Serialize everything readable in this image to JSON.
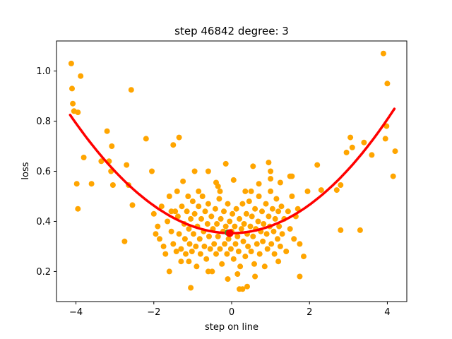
{
  "chart_data": {
    "type": "scatter",
    "title": "step 46842   degree: 3",
    "xlabel": "step on line",
    "ylabel": "loss",
    "xlim": [
      -4.5,
      4.5
    ],
    "ylim": [
      0.08,
      1.12
    ],
    "xticks": [
      -4,
      -2,
      0,
      2,
      4
    ],
    "yticks": [
      0.2,
      0.4,
      0.6,
      0.8,
      1.0
    ],
    "xtick_labels": [
      "−4",
      "−2",
      "0",
      "2",
      "4"
    ],
    "ytick_labels": [
      "0.2",
      "0.4",
      "0.6",
      "0.8",
      "1.0"
    ],
    "grid": false,
    "legend": "none",
    "colors": {
      "points": "#ffa500",
      "fit_curve": "#ff0000",
      "minimum_marker": "#ff0000",
      "current_marker": "#2ca02c"
    },
    "fit_polynomial": {
      "degree": 3,
      "coefficients_low_to_high": [
        0.353,
        0.0005,
        0.0279,
        9e-05
      ],
      "x_range": [
        -4.15,
        4.18
      ]
    },
    "minimum_point": {
      "x": -0.05,
      "y": 0.353
    },
    "current_point": {
      "x": -0.1,
      "y": 0.355
    },
    "points": [
      [
        -4.12,
        1.03
      ],
      [
        -4.1,
        0.93
      ],
      [
        -4.08,
        0.87
      ],
      [
        -4.05,
        0.84
      ],
      [
        -3.95,
        0.835
      ],
      [
        -3.88,
        0.98
      ],
      [
        -3.8,
        0.655
      ],
      [
        -3.98,
        0.55
      ],
      [
        -3.95,
        0.45
      ],
      [
        -3.6,
        0.55
      ],
      [
        -3.35,
        0.64
      ],
      [
        -3.2,
        0.76
      ],
      [
        -3.15,
        0.64
      ],
      [
        -3.1,
        0.6
      ],
      [
        -3.08,
        0.7
      ],
      [
        -3.05,
        0.545
      ],
      [
        -2.75,
        0.32
      ],
      [
        -2.7,
        0.625
      ],
      [
        -2.65,
        0.545
      ],
      [
        -2.58,
        0.925
      ],
      [
        -2.55,
        0.465
      ],
      [
        -2.2,
        0.73
      ],
      [
        -2.05,
        0.6
      ],
      [
        -1.95,
        0.35
      ],
      [
        -1.5,
        0.705
      ],
      [
        -1.35,
        0.735
      ],
      [
        -1.3,
        0.24
      ],
      [
        -1.1,
        0.24
      ],
      [
        -1.05,
        0.135
      ],
      [
        -0.95,
        0.6
      ],
      [
        -0.6,
        0.6
      ],
      [
        -0.4,
        0.555
      ],
      [
        -0.3,
        0.52
      ],
      [
        -0.15,
        0.63
      ],
      [
        0.05,
        0.565
      ],
      [
        0.2,
        0.13
      ],
      [
        0.28,
        0.13
      ],
      [
        0.5,
        0.52
      ],
      [
        0.55,
        0.62
      ],
      [
        0.95,
        0.635
      ],
      [
        1.0,
        0.6
      ],
      [
        1.25,
        0.555
      ],
      [
        1.5,
        0.58
      ],
      [
        1.55,
        0.58
      ],
      [
        1.7,
        0.45
      ],
      [
        1.75,
        0.31
      ],
      [
        1.75,
        0.18
      ],
      [
        1.85,
        0.26
      ],
      [
        1.95,
        0.52
      ],
      [
        2.2,
        0.625
      ],
      [
        2.3,
        0.525
      ],
      [
        2.7,
        0.525
      ],
      [
        2.8,
        0.365
      ],
      [
        2.8,
        0.545
      ],
      [
        2.95,
        0.675
      ],
      [
        3.05,
        0.735
      ],
      [
        3.1,
        0.695
      ],
      [
        3.3,
        0.365
      ],
      [
        3.4,
        0.715
      ],
      [
        3.6,
        0.665
      ],
      [
        3.9,
        1.07
      ],
      [
        3.95,
        0.73
      ],
      [
        3.98,
        0.78
      ],
      [
        4.0,
        0.95
      ],
      [
        4.15,
        0.58
      ],
      [
        4.2,
        0.68
      ],
      [
        -2.0,
        0.43
      ],
      [
        -1.9,
        0.38
      ],
      [
        -1.85,
        0.33
      ],
      [
        -1.8,
        0.46
      ],
      [
        -1.75,
        0.3
      ],
      [
        -1.7,
        0.27
      ],
      [
        -1.65,
        0.4
      ],
      [
        -1.6,
        0.5
      ],
      [
        -1.55,
        0.36
      ],
      [
        -1.5,
        0.31
      ],
      [
        -1.45,
        0.44
      ],
      [
        -1.42,
        0.28
      ],
      [
        -1.4,
        0.52
      ],
      [
        -1.38,
        0.42
      ],
      [
        -1.35,
        0.35
      ],
      [
        -1.3,
        0.29
      ],
      [
        -1.28,
        0.46
      ],
      [
        -1.25,
        0.56
      ],
      [
        -1.22,
        0.39
      ],
      [
        -1.2,
        0.33
      ],
      [
        -1.18,
        0.27
      ],
      [
        -1.15,
        0.44
      ],
      [
        -1.12,
        0.5
      ],
      [
        -1.1,
        0.37
      ],
      [
        -1.08,
        0.31
      ],
      [
        -1.05,
        0.41
      ],
      [
        -1.02,
        0.28
      ],
      [
        -1.0,
        0.48
      ],
      [
        -0.98,
        0.35
      ],
      [
        -0.95,
        0.43
      ],
      [
        -0.92,
        0.3
      ],
      [
        -0.9,
        0.22
      ],
      [
        -0.88,
        0.38
      ],
      [
        -0.85,
        0.46
      ],
      [
        -0.82,
        0.33
      ],
      [
        -0.8,
        0.27
      ],
      [
        -0.78,
        0.41
      ],
      [
        -0.75,
        0.5
      ],
      [
        -0.72,
        0.36
      ],
      [
        -0.7,
        0.3
      ],
      [
        -0.68,
        0.44
      ],
      [
        -0.65,
        0.25
      ],
      [
        -0.62,
        0.39
      ],
      [
        -0.6,
        0.47
      ],
      [
        -0.58,
        0.34
      ],
      [
        -0.55,
        0.29
      ],
      [
        -0.52,
        0.42
      ],
      [
        -0.5,
        0.2
      ],
      [
        -0.48,
        0.37
      ],
      [
        -0.45,
        0.31
      ],
      [
        -0.42,
        0.45
      ],
      [
        -0.4,
        0.27
      ],
      [
        -0.38,
        0.39
      ],
      [
        -0.35,
        0.34
      ],
      [
        -0.32,
        0.49
      ],
      [
        -0.3,
        0.29
      ],
      [
        -0.28,
        0.41
      ],
      [
        -0.25,
        0.23
      ],
      [
        -0.22,
        0.36
      ],
      [
        -0.2,
        0.44
      ],
      [
        -0.18,
        0.31
      ],
      [
        -0.15,
        0.38
      ],
      [
        -0.12,
        0.27
      ],
      [
        -0.1,
        0.47
      ],
      [
        -0.08,
        0.33
      ],
      [
        -0.05,
        0.4
      ],
      [
        -0.02,
        0.29
      ],
      [
        0.0,
        0.36
      ],
      [
        0.02,
        0.43
      ],
      [
        0.05,
        0.25
      ],
      [
        0.08,
        0.38
      ],
      [
        0.1,
        0.31
      ],
      [
        0.12,
        0.45
      ],
      [
        0.15,
        0.34
      ],
      [
        0.18,
        0.28
      ],
      [
        0.2,
        0.41
      ],
      [
        0.22,
        0.22
      ],
      [
        0.25,
        0.37
      ],
      [
        0.28,
        0.47
      ],
      [
        0.3,
        0.32
      ],
      [
        0.32,
        0.39
      ],
      [
        0.35,
        0.26
      ],
      [
        0.38,
        0.43
      ],
      [
        0.4,
        0.35
      ],
      [
        0.42,
        0.3
      ],
      [
        0.45,
        0.48
      ],
      [
        0.48,
        0.38
      ],
      [
        0.5,
        0.28
      ],
      [
        0.52,
        0.42
      ],
      [
        0.55,
        0.34
      ],
      [
        0.58,
        0.23
      ],
      [
        0.6,
        0.45
      ],
      [
        0.62,
        0.37
      ],
      [
        0.65,
        0.31
      ],
      [
        0.68,
        0.4
      ],
      [
        0.7,
        0.5
      ],
      [
        0.72,
        0.27
      ],
      [
        0.75,
        0.36
      ],
      [
        0.78,
        0.44
      ],
      [
        0.8,
        0.32
      ],
      [
        0.82,
        0.39
      ],
      [
        0.85,
        0.22
      ],
      [
        0.88,
        0.47
      ],
      [
        0.9,
        0.35
      ],
      [
        0.92,
        0.29
      ],
      [
        0.95,
        0.42
      ],
      [
        0.98,
        0.38
      ],
      [
        1.0,
        0.52
      ],
      [
        1.02,
        0.31
      ],
      [
        1.05,
        0.45
      ],
      [
        1.08,
        0.36
      ],
      [
        1.1,
        0.27
      ],
      [
        1.12,
        0.41
      ],
      [
        1.15,
        0.49
      ],
      [
        1.18,
        0.33
      ],
      [
        1.2,
        0.44
      ],
      [
        1.22,
        0.38
      ],
      [
        1.25,
        0.3
      ],
      [
        1.28,
        0.46
      ],
      [
        1.3,
        0.35
      ],
      [
        1.35,
        0.41
      ],
      [
        1.4,
        0.28
      ],
      [
        1.45,
        0.44
      ],
      [
        1.5,
        0.37
      ],
      [
        1.55,
        0.5
      ],
      [
        1.6,
        0.33
      ],
      [
        1.65,
        0.42
      ],
      [
        -1.55,
        0.44
      ],
      [
        -0.85,
        0.52
      ],
      [
        -0.35,
        0.54
      ],
      [
        0.35,
        0.52
      ],
      [
        0.7,
        0.55
      ],
      [
        1.0,
        0.57
      ],
      [
        -0.6,
        0.2
      ],
      [
        0.15,
        0.19
      ],
      [
        0.6,
        0.18
      ],
      [
        -1.6,
        0.2
      ],
      [
        1.2,
        0.24
      ],
      [
        -0.1,
        0.17
      ],
      [
        0.4,
        0.14
      ]
    ]
  }
}
